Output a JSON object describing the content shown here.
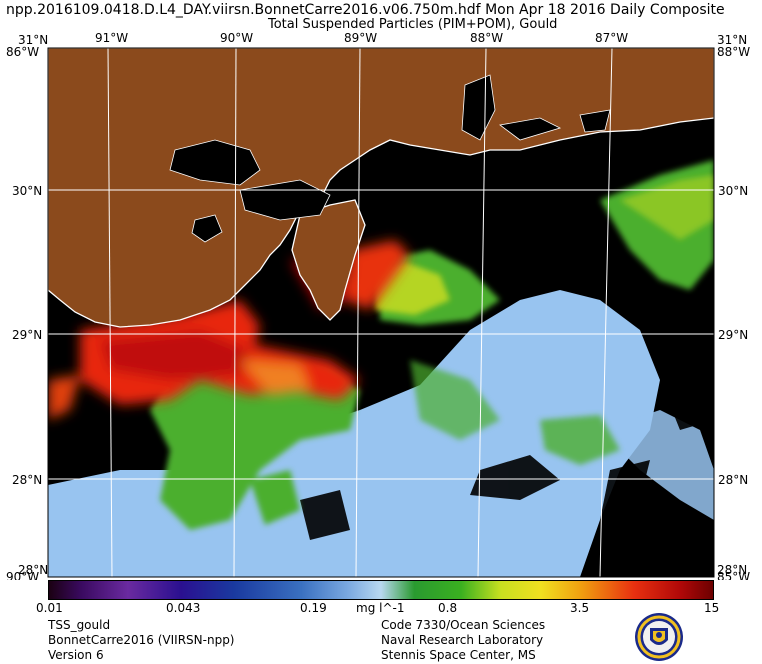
{
  "header": {
    "title_line1": "npp.2016109.0418.D.L4_DAY.viirsn.BonnetCarre2016.v06.750m.hdf    Mon Apr 18 2016 Daily Composite",
    "title_line2": "Total Suspended Particles (PIM+POM), Gould"
  },
  "axes": {
    "lon_labels": [
      "91°W",
      "90°W",
      "89°W",
      "88°W",
      "87°W"
    ],
    "lat_labels": [
      "30°N",
      "29°N",
      "28°N"
    ],
    "corner_lat_top": "31°N",
    "corner_lat_bottom": "28°N",
    "corner_lon_left": "86°W",
    "corner_lon_right": "88°W",
    "corner_lon_bottom_left": "90°W",
    "corner_lon_bottom_right": "85°W"
  },
  "colorbar": {
    "ticks": [
      "0.01",
      "0.043",
      "0.19",
      "mg l^-1",
      "0.8",
      "3.5",
      "15"
    ],
    "scale": "log"
  },
  "footer": {
    "left": [
      "TSS_gould",
      "BonnetCarre2016 (VIIRSN-npp)",
      "Version 6"
    ],
    "right": [
      "Code 7330/Ocean Sciences",
      "Naval Research Laboratory",
      "Stennis Space Center, MS"
    ]
  },
  "colors": {
    "land": "#8b4a1c",
    "no_data": "#000000",
    "graticule": "#ffffff",
    "low_tss": "#98c4f0",
    "mid_tss": "#4caf2f",
    "high_tss": "#d81808"
  },
  "logo_icon": "nrl-seal-icon"
}
